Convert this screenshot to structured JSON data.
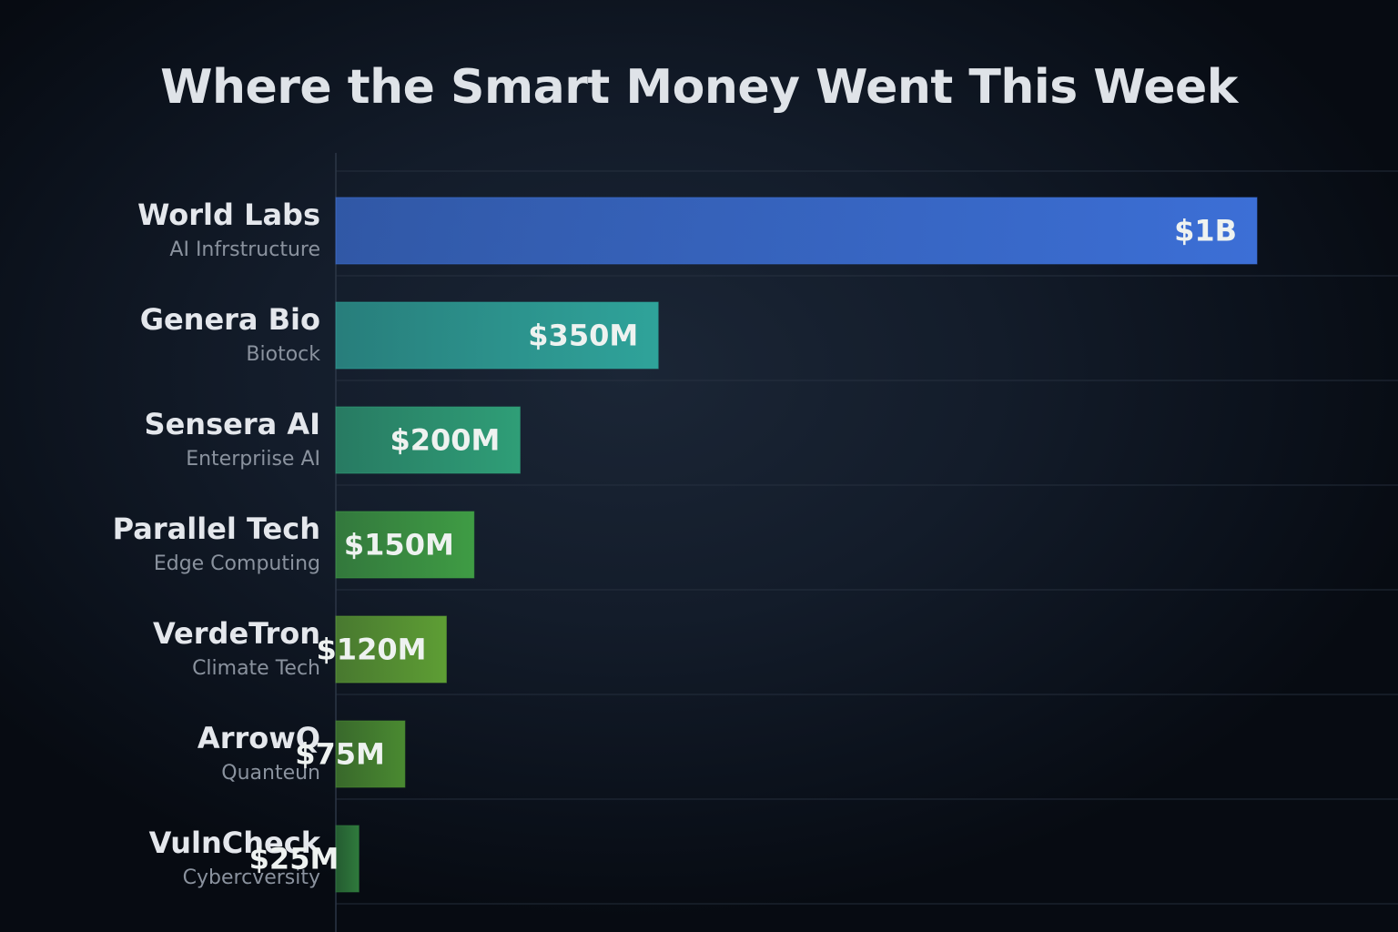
{
  "chart_data": {
    "type": "bar",
    "orientation": "horizontal",
    "title": "Where the Smart Money Went This Week",
    "xlabel": "",
    "ylabel": "",
    "unit": "USD (millions)",
    "xlim": [
      0,
      1000
    ],
    "grid": true,
    "legend": "none",
    "categories": [
      "World Labs",
      "Genera Bio",
      "Sensera AI",
      "Parallel Tech",
      "VerdeTron",
      "ArrowQ",
      "VulnCheck"
    ],
    "subtitles": [
      "AI Infrstructure",
      "Biotock",
      "Enterpriise AI",
      "Edge Computing",
      "Climate Tech",
      "Quanteun",
      "Cybercversity"
    ],
    "values": [
      1000,
      350,
      200,
      150,
      120,
      75,
      25
    ],
    "data_labels": [
      "$1B",
      "$350M",
      "$200M",
      "$150M",
      "$120M",
      "$75M",
      "$25M"
    ],
    "bar_colors": [
      "#3c6fd6",
      "#2fa39a",
      "#2f9e77",
      "#3f9c44",
      "#5e9e34",
      "#4a8a31",
      "#2f7a3c"
    ]
  }
}
